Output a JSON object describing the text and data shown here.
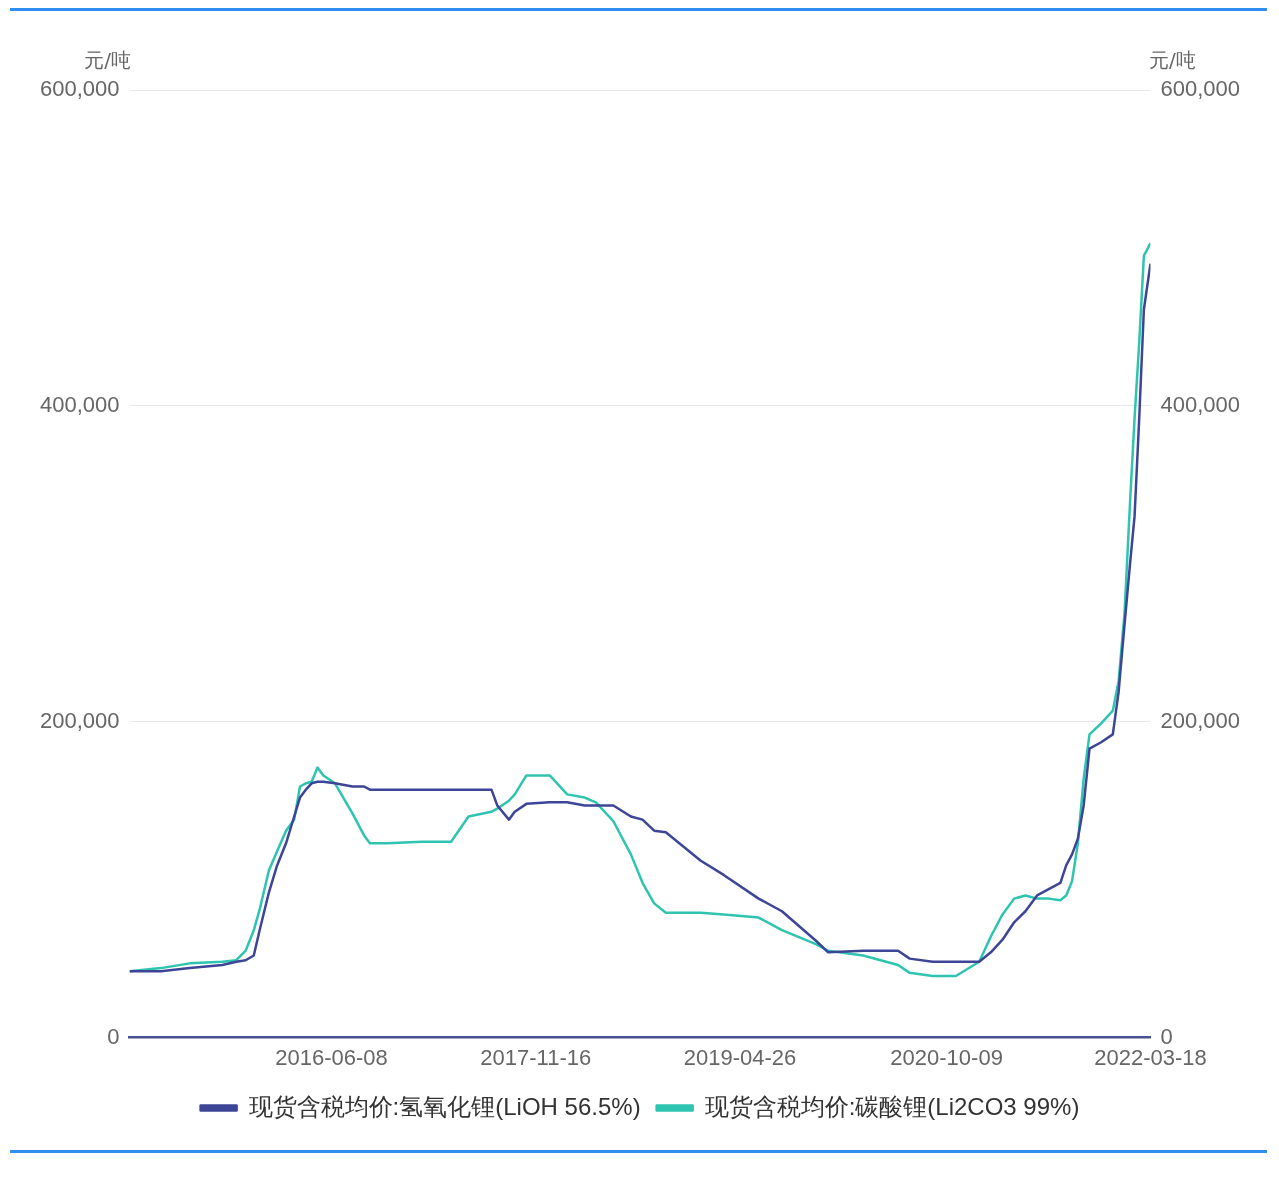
{
  "chart_data": {
    "type": "line",
    "ylabel": "元/吨",
    "y2label": "元/吨",
    "x": [
      "2015-01-05",
      "2015-03-27",
      "2015-06-09",
      "2015-09-01",
      "2015-10-07",
      "2015-10-31",
      "2015-11-21",
      "2015-12-06",
      "2015-12-30",
      "2016-01-20",
      "2016-02-12",
      "2016-03-04",
      "2016-03-19",
      "2016-04-03",
      "2016-04-18",
      "2016-05-03",
      "2016-05-18",
      "2016-06-17",
      "2016-08-01",
      "2016-08-31",
      "2016-09-15",
      "2016-10-29",
      "2017-01-27",
      "2017-04-12",
      "2017-05-27",
      "2017-07-25",
      "2017-08-09",
      "2017-09-08",
      "2017-09-23",
      "2017-10-23",
      "2017-12-22",
      "2018-02-05",
      "2018-03-22",
      "2018-04-20",
      "2018-06-04",
      "2018-07-19",
      "2018-08-18",
      "2018-09-17",
      "2018-10-17",
      "2019-01-15",
      "2019-03-15",
      "2019-06-13",
      "2019-08-12",
      "2019-11-09",
      "2019-12-09",
      "2020-03-08",
      "2020-06-06",
      "2020-07-06",
      "2020-09-03",
      "2020-11-02",
      "2021-01-01",
      "2021-01-31",
      "2021-03-02",
      "2021-04-01",
      "2021-04-30",
      "2021-05-30",
      "2021-06-29",
      "2021-07-29",
      "2021-08-13",
      "2021-08-28",
      "2021-09-12",
      "2021-09-27",
      "2021-10-12",
      "2021-11-11",
      "2021-12-11",
      "2021-12-26",
      "2022-01-10",
      "2022-01-24",
      "2022-02-05",
      "2022-02-17",
      "2022-03-01",
      "2022-03-18"
    ],
    "series": [
      {
        "name": "现货含税均价:氢氧化锂(LiOH 56.5%)",
        "color": "#3d4596",
        "values": [
          42000,
          42000,
          44000,
          46000,
          48000,
          49000,
          52000,
          68000,
          92000,
          109000,
          123000,
          140000,
          152000,
          157000,
          161000,
          162000,
          162000,
          161000,
          159000,
          159000,
          157000,
          157000,
          157000,
          157000,
          157000,
          157000,
          147000,
          138000,
          143000,
          148000,
          149000,
          149000,
          147000,
          147000,
          147000,
          140000,
          138000,
          131000,
          130000,
          112000,
          103000,
          88000,
          80000,
          61000,
          54000,
          55000,
          55000,
          50000,
          48000,
          48000,
          48000,
          54000,
          62000,
          73000,
          80000,
          90000,
          94000,
          98000,
          109000,
          116000,
          126000,
          147000,
          183000,
          187000,
          192000,
          219000,
          261000,
          299000,
          330000,
          392000,
          461000,
          490000
        ]
      },
      {
        "name": "现货含税均价:碳酸锂(Li2CO3 99%)",
        "color": "#2ec4b0",
        "values": [
          42000,
          44000,
          47000,
          48000,
          49000,
          55000,
          68000,
          81000,
          106000,
          118000,
          131000,
          138000,
          159000,
          161000,
          162000,
          171000,
          166000,
          161000,
          142000,
          128000,
          123000,
          123000,
          124000,
          124000,
          140000,
          143000,
          145000,
          150000,
          154000,
          166000,
          166000,
          154000,
          152000,
          149000,
          137000,
          116000,
          98000,
          85000,
          79000,
          79000,
          78000,
          76000,
          68000,
          59000,
          55000,
          52000,
          46000,
          41000,
          39000,
          39000,
          48000,
          64000,
          78000,
          88000,
          90000,
          88000,
          88000,
          87000,
          90000,
          99000,
          123000,
          164000,
          192000,
          199000,
          207000,
          226000,
          268000,
          337000,
          392000,
          440000,
          495000,
          503000
        ]
      }
    ],
    "xlim": [
      "2015-01-05",
      "2022-03-18"
    ],
    "xticks": [
      "2016-06-08",
      "2017-11-16",
      "2019-04-26",
      "2020-10-09",
      "2022-03-18"
    ],
    "ylim": [
      0,
      600000
    ],
    "yticks": [
      0,
      {
        "value": 200000,
        "label": "200,000"
      },
      {
        "value": 400000,
        "label": "400,000"
      },
      {
        "value": 600000,
        "label": "600,000"
      }
    ],
    "y2lim": [
      0,
      600000
    ],
    "y2ticks": [
      0,
      {
        "value": 200000,
        "label": "200,000"
      },
      {
        "value": 400000,
        "label": "400,000"
      },
      {
        "value": 600000,
        "label": "600,000"
      }
    ],
    "grid": "y",
    "legend": "bottom",
    "marker": "none",
    "line_style": "solid"
  }
}
